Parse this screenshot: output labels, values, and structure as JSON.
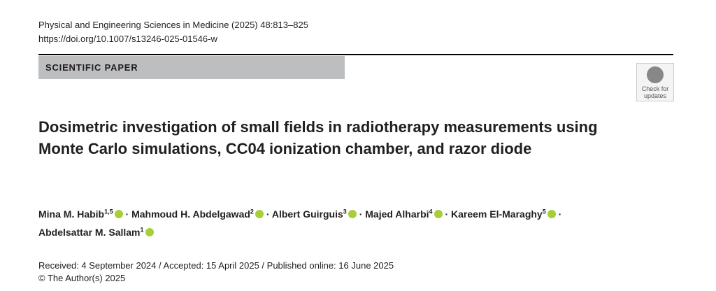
{
  "header": {
    "journal": "Physical and Engineering Sciences in Medicine (2025) 48:813–825",
    "doi": "https://doi.org/10.1007/s13246-025-01546-w",
    "section": "SCIENTIFIC PAPER",
    "badge": [
      "Check for",
      "updates"
    ]
  },
  "title": "Dosimetric investigation of small fields in radiotherapy measurements using Monte Carlo simulations, CC04 ionization chamber, and razor diode",
  "separator": "·",
  "authors": [
    {
      "name": "Mina M. Habib",
      "affiliation": "1,5"
    },
    {
      "name": "Mahmoud H. Abdelgawad",
      "affiliation": "2"
    },
    {
      "name": "Albert Guirguis",
      "affiliation": "3"
    },
    {
      "name": "Majed Alharbi",
      "affiliation": "4"
    },
    {
      "name": "Kareem El-Maraghy",
      "affiliation": "5"
    },
    {
      "name": "Abdelsattar M. Sallam",
      "affiliation": "1"
    }
  ],
  "dates": "Received: 4 September 2024 / Accepted: 15 April 2025 / Published online: 16 June 2025",
  "copyright": "© The Author(s) 2025"
}
